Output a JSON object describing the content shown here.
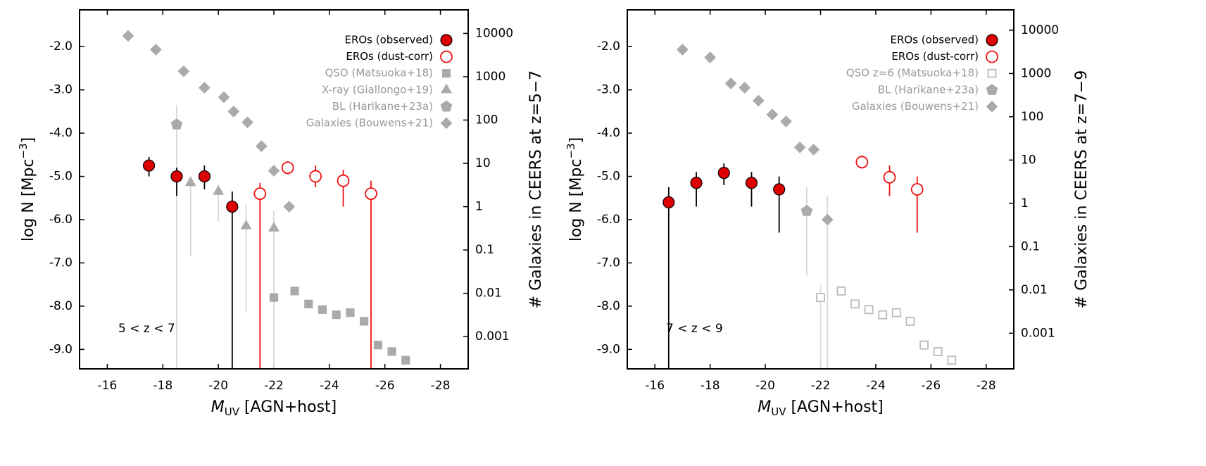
{
  "chart_data": [
    {
      "type": "scatter",
      "xlabel": [
        "M",
        "UV",
        " [AGN+host]"
      ],
      "ylabel": [
        "log N [Mpc",
        "−3",
        "]"
      ],
      "y2label": "# Galaxies in CEERS at z=5−7",
      "annotation": "5 < z < 7",
      "xlim": [
        -15,
        -29
      ],
      "xticks": [
        -16,
        -18,
        -20,
        -22,
        -24,
        -26,
        -28
      ],
      "ylim": [
        -9.45,
        -1.15
      ],
      "yticks": [
        {
          "value": -9,
          "label": "-9.0"
        },
        {
          "value": -8,
          "label": "-8.0"
        },
        {
          "value": -7,
          "label": "-7.0"
        },
        {
          "value": -6,
          "label": "-6.0"
        },
        {
          "value": -5,
          "label": "-5.0"
        },
        {
          "value": -4,
          "label": "-4.0"
        },
        {
          "value": -3,
          "label": "-3.0"
        },
        {
          "value": -2,
          "label": "-2.0"
        }
      ],
      "y2scale": "log",
      "y2lim": [
        0.00018,
        35000
      ],
      "y2ticks": [
        0.001,
        0.01,
        0.1,
        1,
        10,
        100,
        1000,
        10000
      ],
      "series": [
        {
          "name": "EROs (observed)",
          "marker": "circle",
          "filled": true,
          "color": "#dd0000",
          "edgecolor": "#000000",
          "errcolor": "#000000",
          "label_color": "#000000",
          "x": [
            -17.5,
            -18.5,
            -19.5,
            -20.5
          ],
          "values": [
            -4.75,
            -5.0,
            -5.0,
            -5.7
          ],
          "err_low": [
            0.25,
            0.45,
            0.3,
            3.8
          ],
          "err_high": [
            0.2,
            0.2,
            0.25,
            0.35
          ]
        },
        {
          "name": "EROs (dust-corr)",
          "marker": "circle",
          "filled": false,
          "color": "#ee1111",
          "edgecolor": "#ee1111",
          "errcolor": "#ee1111",
          "label_color": "#000000",
          "x": [
            -21.5,
            -22.5,
            -23.5,
            -24.5,
            -25.5
          ],
          "values": [
            -5.4,
            -4.8,
            -5.0,
            -5.1,
            -5.4
          ],
          "err_low": [
            4.1,
            0.15,
            0.25,
            0.6,
            4.1
          ],
          "err_high": [
            0.25,
            0.15,
            0.25,
            0.25,
            0.3
          ]
        },
        {
          "name": "QSO (Matsuoka+18)",
          "marker": "square",
          "filled": true,
          "color": "#aaaaaa",
          "edgecolor": "#aaaaaa",
          "errcolor": "#d8d8d8",
          "label_color": "#999999",
          "x": [
            -22.0,
            -22.75,
            -23.25,
            -23.75,
            -24.25,
            -24.75,
            -25.25,
            -25.75,
            -26.25,
            -26.75
          ],
          "values": [
            -7.8,
            -7.65,
            -7.95,
            -8.08,
            -8.2,
            -8.15,
            -8.35,
            -8.9,
            -9.05,
            -9.25
          ]
        },
        {
          "name": "X-ray (Giallongo+19)",
          "marker": "triangle",
          "filled": true,
          "color": "#aaaaaa",
          "edgecolor": "#aaaaaa",
          "errcolor": "#d8d8d8",
          "label_color": "#999999",
          "x": [
            -19,
            -20,
            -21,
            -22
          ],
          "values": [
            -5.15,
            -5.35,
            -6.15,
            -6.2
          ],
          "err_low": [
            1.7,
            0.7,
            2.0,
            3.3
          ],
          "err_high": [
            0.15,
            0.15,
            0.5,
            0.4
          ]
        },
        {
          "name": "BL (Harikane+23a)",
          "marker": "pentagon",
          "filled": true,
          "color": "#aaaaaa",
          "edgecolor": "#aaaaaa",
          "errcolor": "#d8d8d8",
          "label_color": "#999999",
          "x": [
            -18.5,
            -21.5
          ],
          "values": [
            -3.8,
            -5.4
          ],
          "err_low": [
            5.7,
            4.1
          ],
          "err_high": [
            0.45,
            0.2
          ]
        },
        {
          "name": "Galaxies (Bouwens+21)",
          "marker": "diamond",
          "filled": true,
          "color": "#aaaaaa",
          "edgecolor": "#aaaaaa",
          "errcolor": "#d8d8d8",
          "label_color": "#999999",
          "x": [
            -16.75,
            -17.75,
            -18.75,
            -19.5,
            -20.2,
            -20.55,
            -21.05,
            -21.55,
            -22.0,
            -22.55
          ],
          "values": [
            -1.75,
            -2.07,
            -2.57,
            -2.95,
            -3.17,
            -3.5,
            -3.75,
            -4.3,
            -4.87,
            -5.7
          ]
        }
      ]
    },
    {
      "type": "scatter",
      "xlabel": [
        "M",
        "UV",
        " [AGN+host]"
      ],
      "ylabel": [
        "log N [Mpc",
        "−3",
        "]"
      ],
      "y2label": "# Galaxies in CEERS at z=7−9",
      "annotation": "7 < z < 9",
      "xlim": [
        -15,
        -29
      ],
      "xticks": [
        -16,
        -18,
        -20,
        -22,
        -24,
        -26,
        -28
      ],
      "ylim": [
        -9.45,
        -1.15
      ],
      "yticks": [
        {
          "value": -9,
          "label": "-9.0"
        },
        {
          "value": -8,
          "label": "-8.0"
        },
        {
          "value": -7,
          "label": "-7.0"
        },
        {
          "value": -6,
          "label": "-6.0"
        },
        {
          "value": -5,
          "label": "-5.0"
        },
        {
          "value": -4,
          "label": "-4.0"
        },
        {
          "value": -3,
          "label": "-3.0"
        },
        {
          "value": -2,
          "label": "-2.0"
        }
      ],
      "y2scale": "log",
      "y2lim": [
        0.00015,
        29500
      ],
      "y2ticks": [
        0.001,
        0.01,
        0.1,
        1,
        10,
        100,
        1000,
        10000
      ],
      "series": [
        {
          "name": "EROs (observed)",
          "marker": "circle",
          "filled": true,
          "color": "#dd0000",
          "edgecolor": "#000000",
          "errcolor": "#000000",
          "label_color": "#000000",
          "x": [
            -16.5,
            -17.5,
            -18.5,
            -19.5,
            -20.5
          ],
          "values": [
            -5.6,
            -5.15,
            -4.92,
            -5.15,
            -5.3
          ],
          "err_low": [
            3.9,
            0.55,
            0.28,
            0.55,
            1.0
          ],
          "err_high": [
            0.35,
            0.25,
            0.22,
            0.25,
            0.3
          ]
        },
        {
          "name": "EROs (dust-corr)",
          "marker": "circle",
          "filled": false,
          "color": "#ee1111",
          "edgecolor": "#ee1111",
          "errcolor": "#ee1111",
          "label_color": "#000000",
          "x": [
            -23.5,
            -24.5,
            -25.5
          ],
          "values": [
            -4.67,
            -5.02,
            -5.3
          ],
          "err_low": [
            0.15,
            0.43,
            1.0
          ],
          "err_high": [
            0.15,
            0.27,
            0.3
          ]
        },
        {
          "name": "QSO z=6 (Matsuoka+18)",
          "marker": "square",
          "filled": false,
          "color": "#bbbbbb",
          "edgecolor": "#bbbbbb",
          "errcolor": "#dddddd",
          "label_color": "#999999",
          "x": [
            -22.0,
            -22.75,
            -23.25,
            -23.75,
            -24.25,
            -24.75,
            -25.25,
            -25.75,
            -26.25,
            -26.75
          ],
          "values": [
            -7.8,
            -7.65,
            -7.95,
            -8.08,
            -8.2,
            -8.15,
            -8.35,
            -8.9,
            -9.05,
            -9.25
          ],
          "err_low": [
            1.7,
            null,
            null,
            null,
            null,
            null,
            null,
            null,
            null,
            null
          ],
          "err_high": [
            0.3,
            null,
            null,
            null,
            null,
            null,
            null,
            null,
            null,
            null
          ]
        },
        {
          "name": "BL (Harikane+23a)",
          "marker": "pentagon",
          "filled": true,
          "color": "#aaaaaa",
          "edgecolor": "#aaaaaa",
          "errcolor": "#d8d8d8",
          "label_color": "#999999",
          "x": [
            -21.5
          ],
          "values": [
            -5.8
          ],
          "err_low": [
            1.5
          ],
          "err_high": [
            0.55
          ]
        },
        {
          "name": "Galaxies (Bouwens+21)",
          "marker": "diamond",
          "filled": true,
          "color": "#aaaaaa",
          "edgecolor": "#aaaaaa",
          "errcolor": "#d8d8d8",
          "label_color": "#999999",
          "x": [
            -17,
            -18,
            -18.75,
            -19.25,
            -19.75,
            -20.25,
            -20.75,
            -21.25,
            -21.75,
            -22.25
          ],
          "values": [
            -2.07,
            -2.25,
            -2.85,
            -2.95,
            -3.25,
            -3.57,
            -3.73,
            -4.33,
            -4.38,
            -6.0
          ],
          "err_low": [
            null,
            null,
            null,
            null,
            null,
            null,
            null,
            null,
            null,
            3.5
          ],
          "err_high": [
            null,
            null,
            null,
            null,
            null,
            null,
            null,
            null,
            null,
            0.55
          ]
        }
      ]
    }
  ]
}
